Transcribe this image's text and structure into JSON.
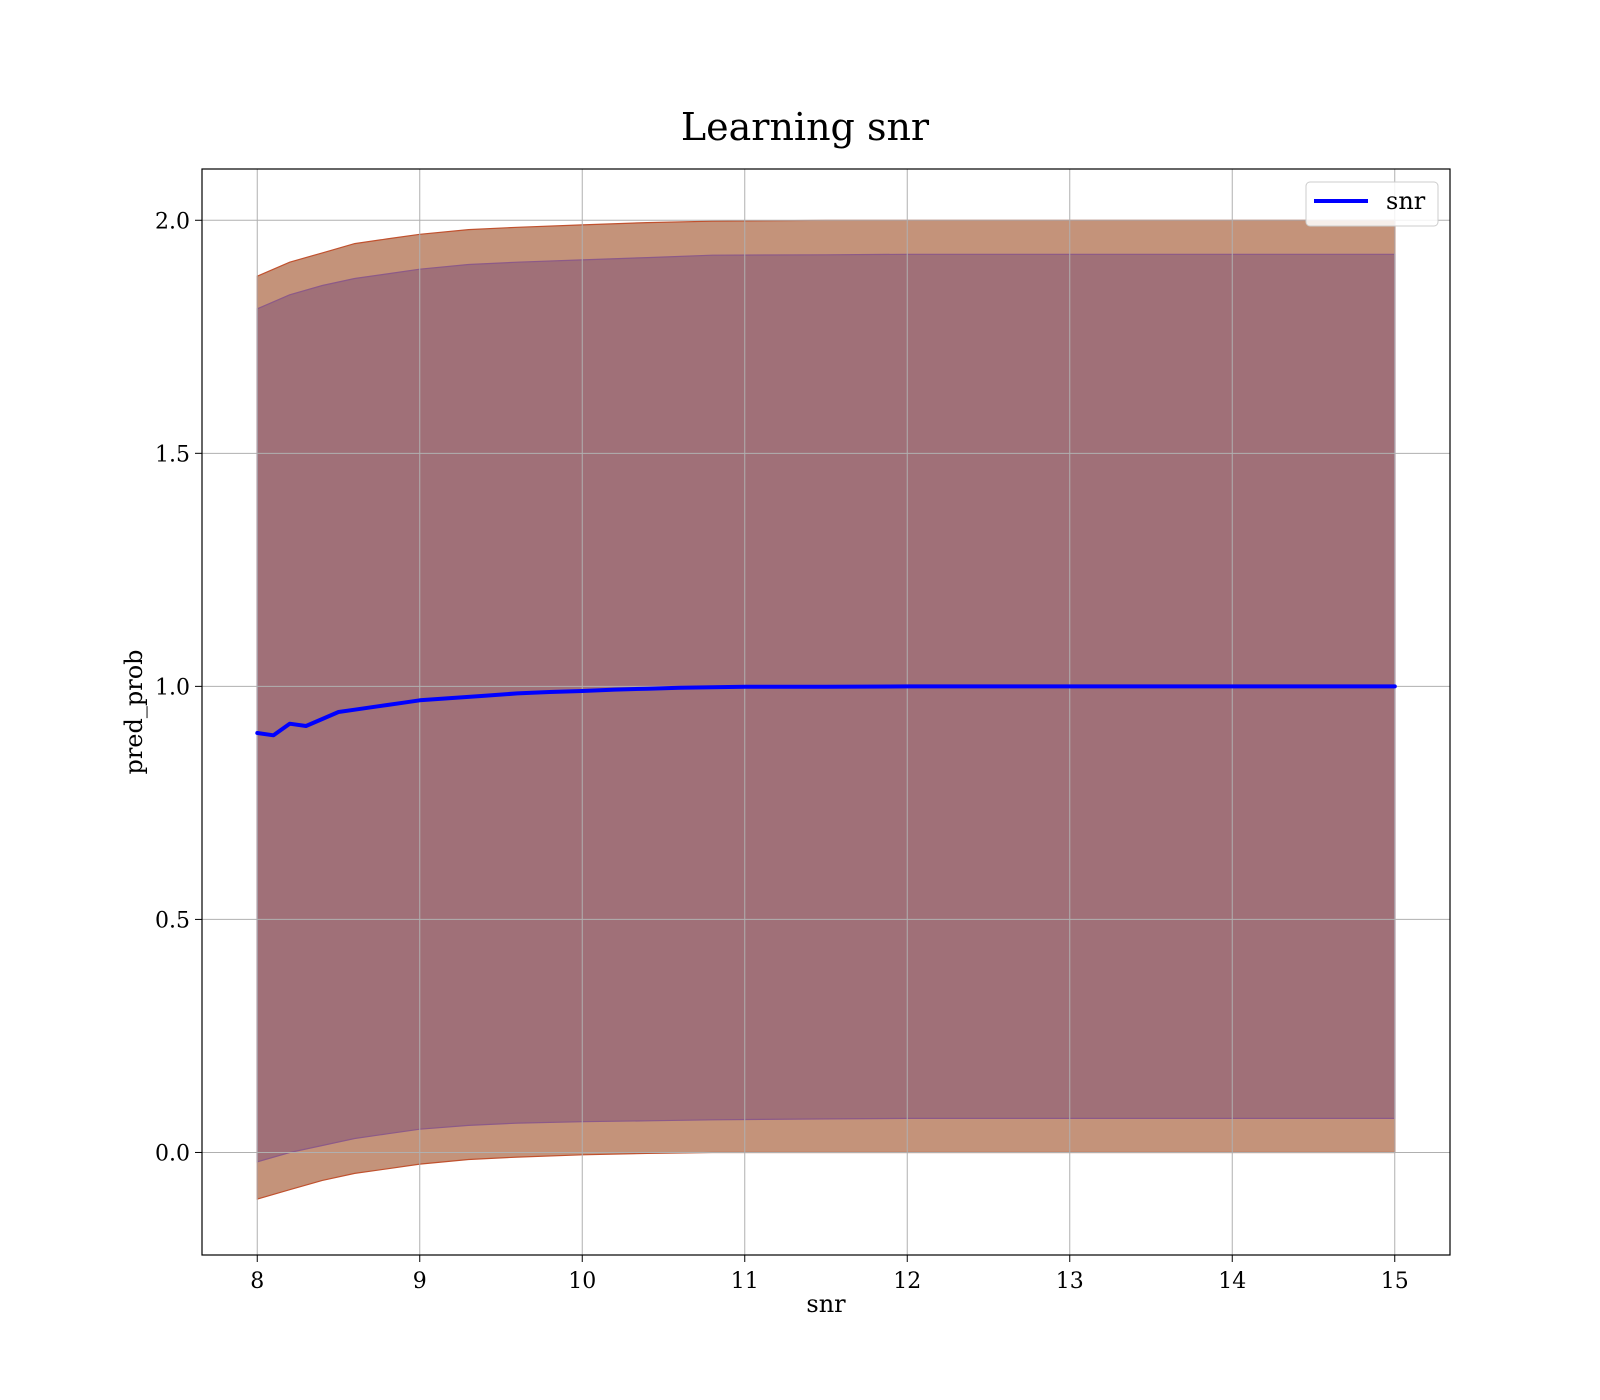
{
  "chart_data": {
    "type": "line",
    "title": "Learning snr",
    "xlabel": "snr",
    "ylabel": "pred_prob",
    "xlim": [
      7.66,
      15.34
    ],
    "ylim": [
      -0.22,
      2.11
    ],
    "xticks": [
      "8",
      "9",
      "10",
      "11",
      "12",
      "13",
      "14",
      "15"
    ],
    "yticks": [
      "0.0",
      "0.5",
      "1.0",
      "1.5",
      "2.0"
    ],
    "grid": true,
    "legend": {
      "placement": "top-right",
      "entries": [
        "snr"
      ]
    },
    "colors": {
      "line": "#0000ff",
      "band_outer": "#c4937a",
      "band_outer_edge": "#c0512e",
      "band_inner": "#a07078",
      "band_inner_edge": "#8c5a88"
    },
    "series": [
      {
        "name": "snr",
        "x": [
          8.0,
          8.1,
          8.2,
          8.3,
          8.4,
          8.5,
          8.6,
          8.7,
          8.8,
          8.9,
          9.0,
          9.2,
          9.4,
          9.6,
          9.8,
          10.0,
          10.2,
          10.4,
          10.6,
          10.8,
          11.0,
          11.5,
          12.0,
          12.5,
          13.0,
          13.5,
          14.0,
          14.5,
          15.0
        ],
        "y": [
          0.9,
          0.895,
          0.92,
          0.915,
          0.93,
          0.945,
          0.95,
          0.955,
          0.96,
          0.965,
          0.97,
          0.975,
          0.98,
          0.985,
          0.988,
          0.99,
          0.993,
          0.995,
          0.997,
          0.998,
          0.999,
          0.999,
          1.0,
          1.0,
          1.0,
          1.0,
          1.0,
          1.0,
          1.0
        ]
      }
    ],
    "bands": [
      {
        "x": [
          8.0,
          8.2,
          8.4,
          8.6,
          8.8,
          9.0,
          9.3,
          9.6,
          10.0,
          10.4,
          10.8,
          11.5,
          12.0,
          13.0,
          14.0,
          15.0
        ],
        "upper": [
          1.88,
          1.91,
          1.93,
          1.95,
          1.96,
          1.97,
          1.98,
          1.985,
          1.99,
          1.995,
          1.998,
          2.0,
          2.0,
          2.0,
          2.0,
          2.0
        ],
        "lower": [
          -0.1,
          -0.08,
          -0.06,
          -0.045,
          -0.035,
          -0.025,
          -0.015,
          -0.01,
          -0.005,
          -0.002,
          0.0,
          0.0,
          0.0,
          0.0,
          0.0,
          0.0
        ]
      },
      {
        "x": [
          8.0,
          8.2,
          8.4,
          8.6,
          8.8,
          9.0,
          9.3,
          9.6,
          10.0,
          10.4,
          10.8,
          11.5,
          12.0,
          13.0,
          14.0,
          15.0
        ],
        "upper": [
          1.81,
          1.84,
          1.86,
          1.875,
          1.885,
          1.895,
          1.905,
          1.91,
          1.915,
          1.92,
          1.925,
          1.926,
          1.927,
          1.927,
          1.927,
          1.927
        ],
        "lower": [
          -0.02,
          0.0,
          0.015,
          0.03,
          0.04,
          0.05,
          0.058,
          0.063,
          0.066,
          0.068,
          0.07,
          0.072,
          0.073,
          0.073,
          0.073,
          0.073
        ]
      }
    ]
  }
}
